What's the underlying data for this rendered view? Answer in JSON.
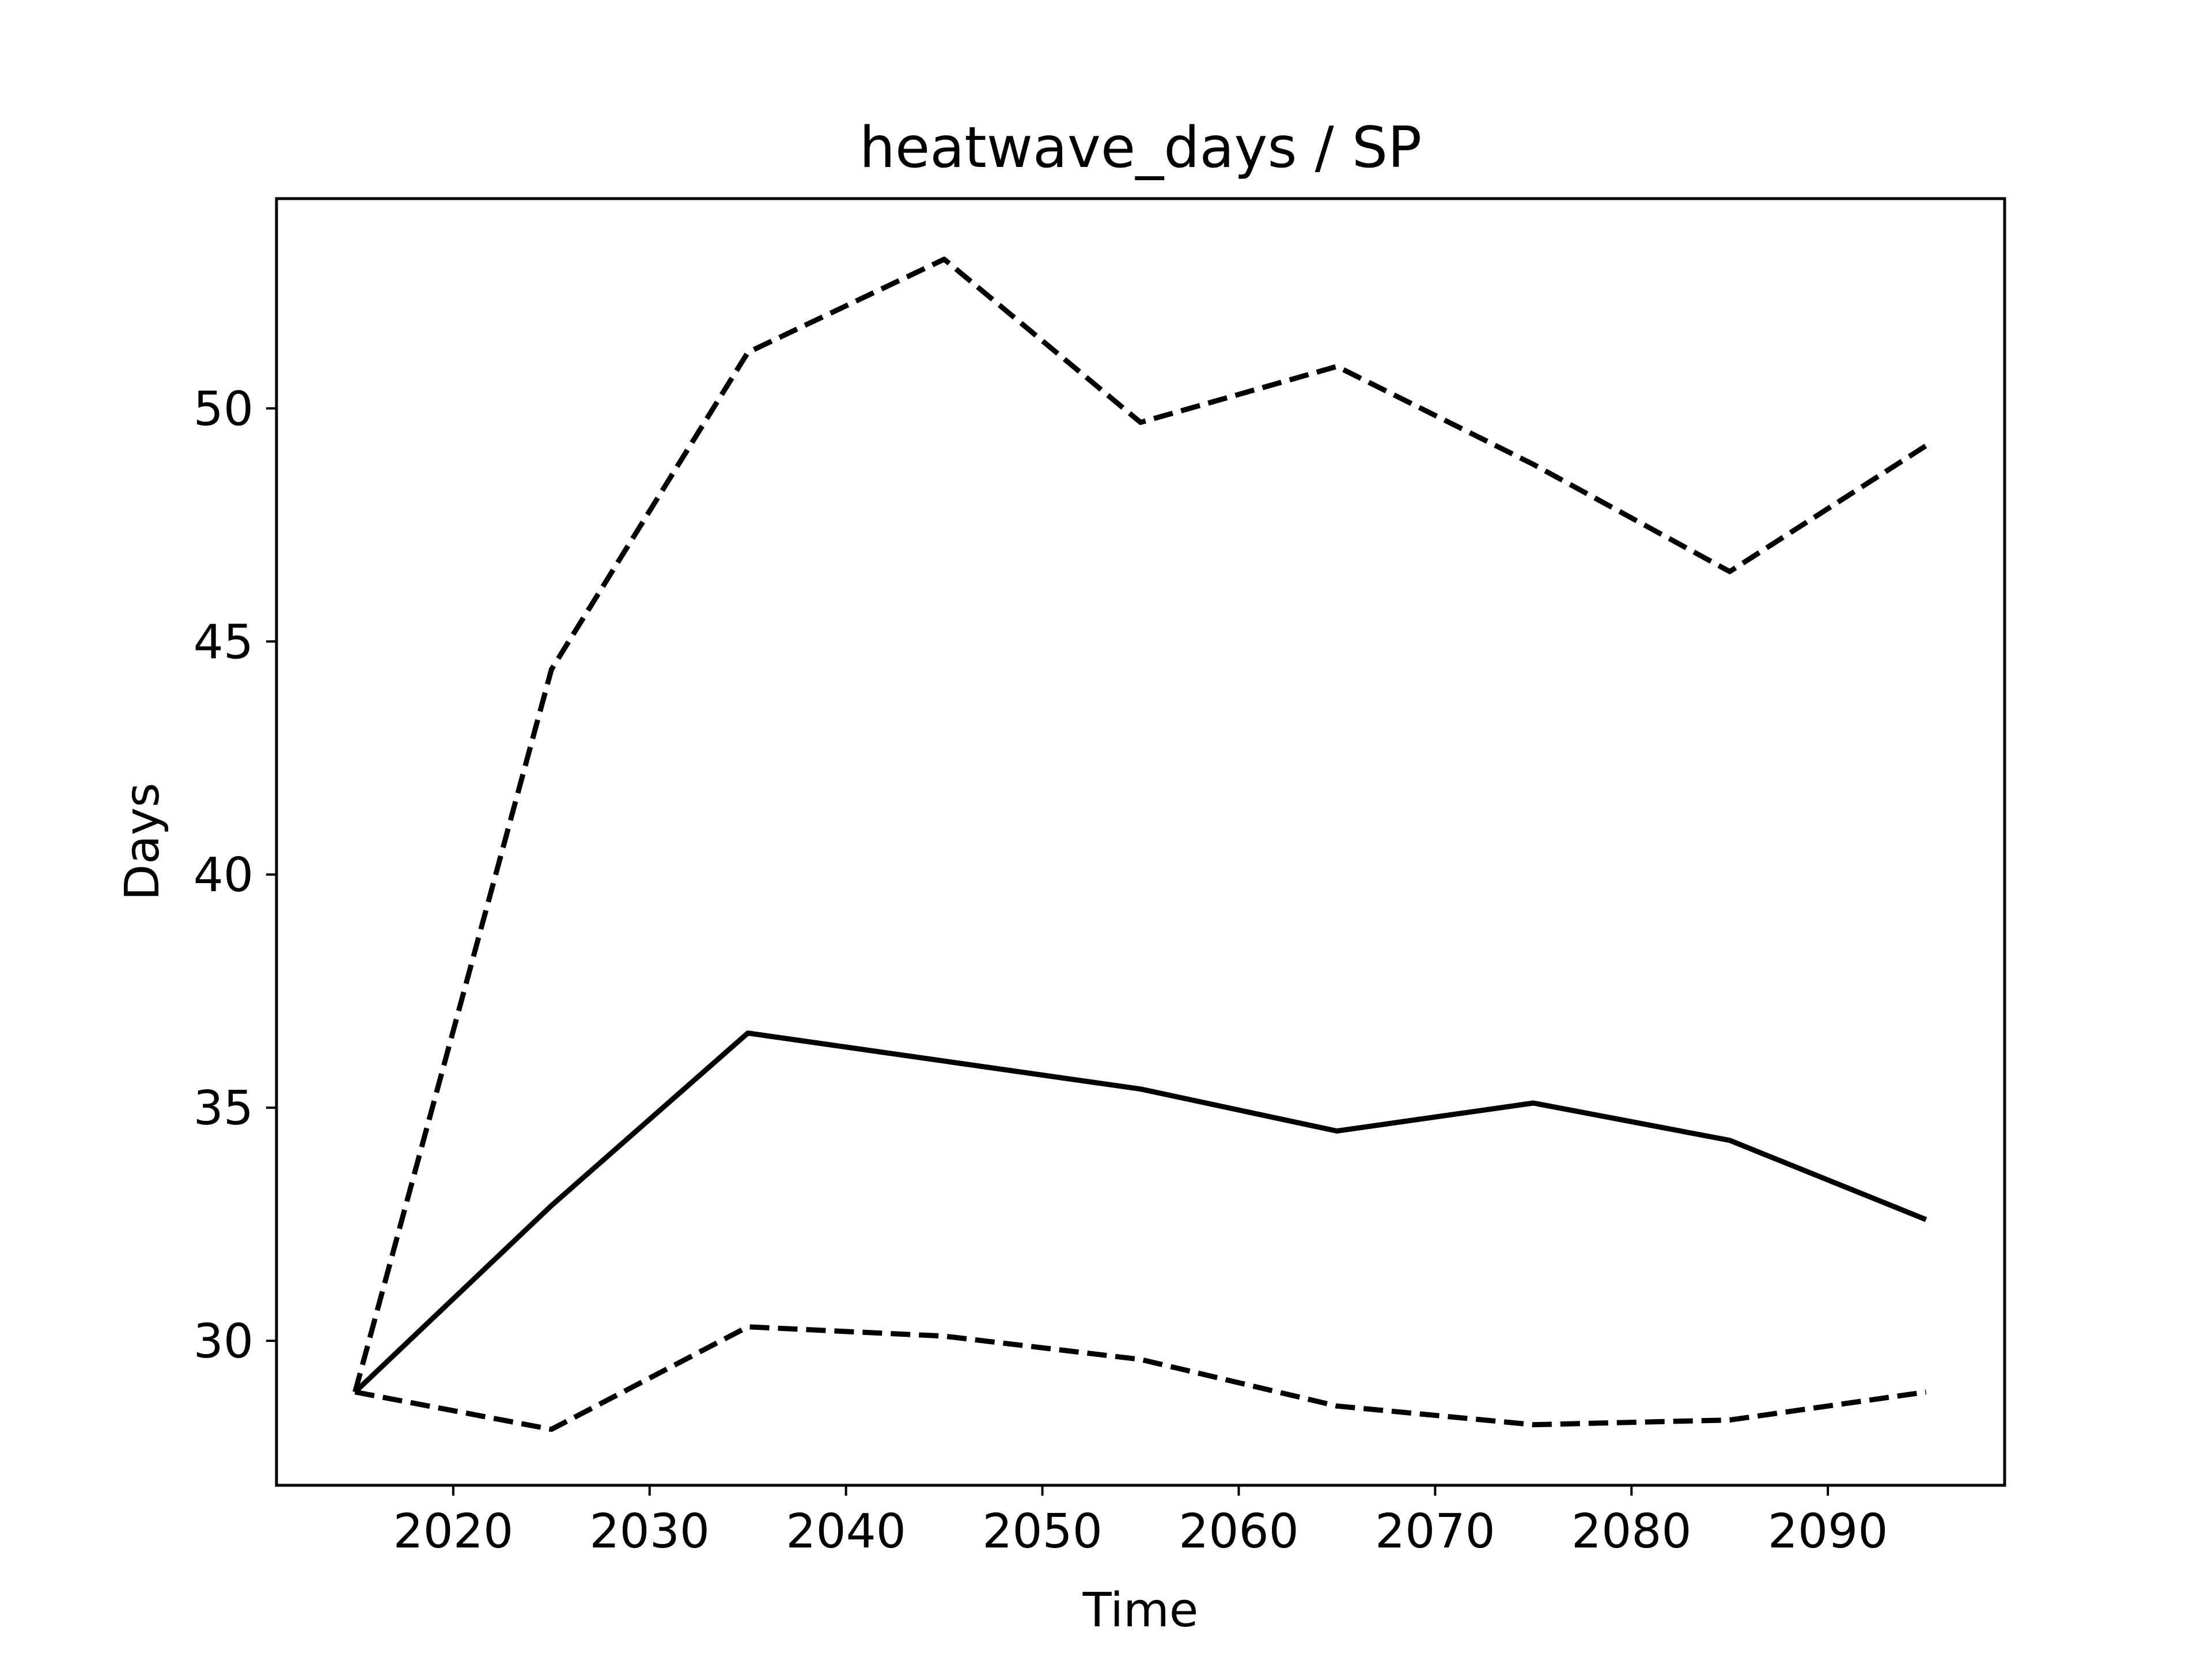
{
  "chart_data": {
    "type": "line",
    "title": "heatwave_days / SP",
    "xlabel": "Time",
    "ylabel": "Days",
    "x": [
      2015,
      2025,
      2035,
      2045,
      2055,
      2065,
      2075,
      2085,
      2095
    ],
    "xlim": [
      2011,
      2099
    ],
    "ylim": [
      26.9,
      54.5
    ],
    "xticks": [
      2020,
      2030,
      2040,
      2050,
      2060,
      2070,
      2080,
      2090
    ],
    "yticks": [
      30,
      35,
      40,
      45,
      50
    ],
    "grid": false,
    "legend": "none",
    "series": [
      {
        "style": "solid",
        "color": "#000000",
        "values": [
          28.9,
          32.9,
          36.6,
          36.0,
          35.4,
          34.5,
          35.1,
          34.3,
          32.6
        ]
      },
      {
        "style": "dashed",
        "color": "#000000",
        "values": [
          28.9,
          44.4,
          51.2,
          53.2,
          49.7,
          50.9,
          48.8,
          46.5,
          49.2
        ]
      },
      {
        "style": "dashed",
        "color": "#000000",
        "values": [
          28.9,
          28.1,
          30.3,
          30.1,
          29.6,
          28.6,
          28.2,
          28.3,
          28.9
        ]
      }
    ]
  }
}
